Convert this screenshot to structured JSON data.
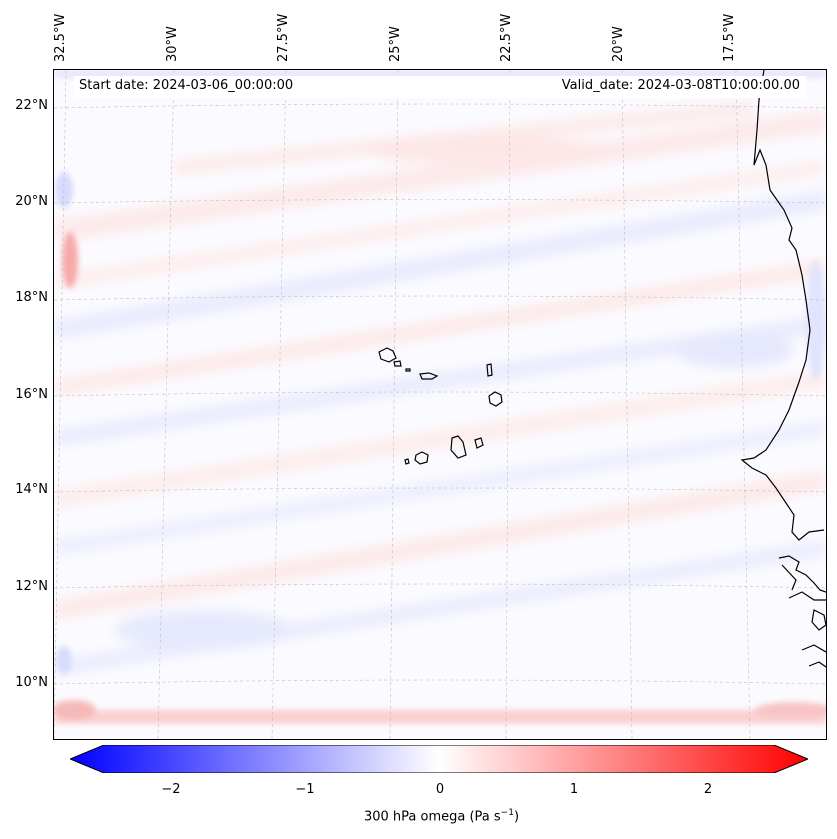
{
  "header": {
    "start_date": "Start date: 2024-03-06_00:00:00",
    "valid_date": "Valid_date: 2024-03-08T10:00:00.00"
  },
  "lon_labels": [
    "32.5°W",
    "30°W",
    "27.5°W",
    "25°W",
    "22.5°W",
    "20°W",
    "17.5°W"
  ],
  "lat_labels": [
    "22°N",
    "20°N",
    "18°N",
    "16°N",
    "14°N",
    "12°N",
    "10°N"
  ],
  "colorbar": {
    "ticks": [
      "−2",
      "−1",
      "0",
      "1",
      "2"
    ],
    "label": "300 hPa omega (Pa s",
    "label_sup": "−1",
    "label_end": ")",
    "range": [
      -2.6,
      2.6
    ],
    "colormap": "bwr",
    "low_color": "#0000ff",
    "mid_color": "#ffffff",
    "high_color": "#ff0000"
  }
}
